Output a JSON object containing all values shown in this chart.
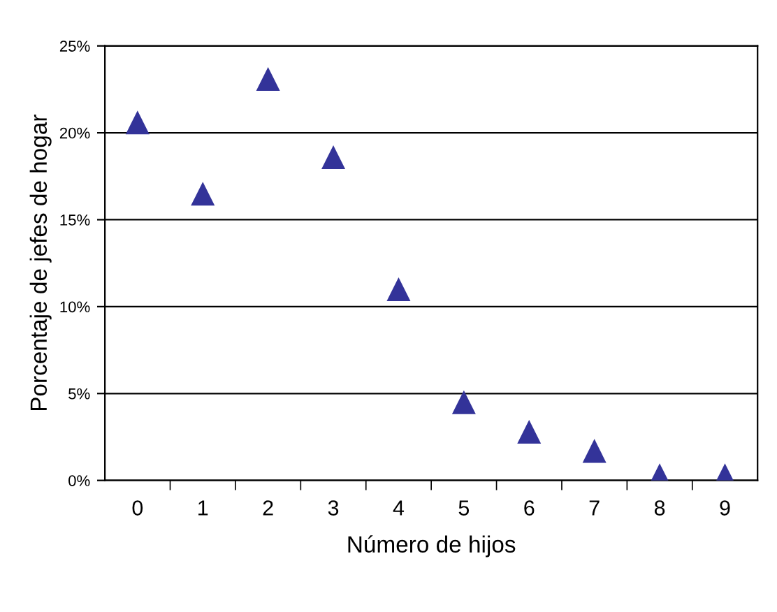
{
  "chart_data": {
    "type": "scatter",
    "xlabel": "Número de hijos",
    "ylabel": "Porcentaje de jefes de hogar",
    "categories": [
      "0",
      "1",
      "2",
      "3",
      "4",
      "5",
      "6",
      "7",
      "8",
      "9"
    ],
    "values": [
      20.6,
      16.5,
      23.1,
      18.6,
      11.0,
      4.5,
      2.8,
      1.7,
      0.3,
      0.3
    ],
    "color": "#333399",
    "marker": "triangle",
    "grid": "y",
    "ylim": [
      0,
      25
    ],
    "yticks": [
      {
        "value": 0,
        "label": "0%"
      },
      {
        "value": 5,
        "label": "5%"
      },
      {
        "value": 10,
        "label": "10%"
      },
      {
        "value": 15,
        "label": "15%"
      },
      {
        "value": 20,
        "label": "20%"
      },
      {
        "value": 25,
        "label": "25%"
      }
    ]
  }
}
